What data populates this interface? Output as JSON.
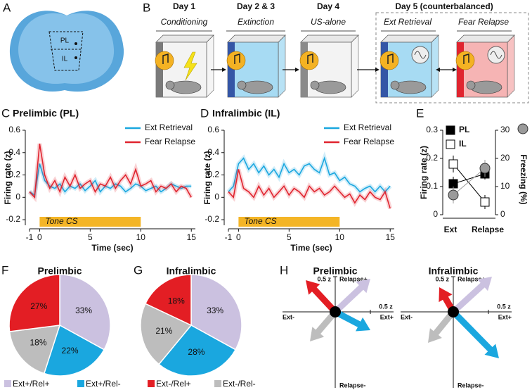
{
  "panel_labels": [
    "A",
    "B",
    "C",
    "D",
    "E",
    "F",
    "G",
    "H"
  ],
  "brain": {
    "regions": [
      "PL",
      "IL"
    ]
  },
  "protocol": {
    "days": [
      {
        "day": "Day 1",
        "phase": "Conditioning"
      },
      {
        "day": "Day 2 & 3",
        "phase": "Extinction"
      },
      {
        "day": "Day 4",
        "phase": "US-alone"
      }
    ],
    "day5": {
      "day": "Day 5 (counterbalanced)",
      "phases": [
        "Ext Retrieval",
        "Fear Relapse"
      ]
    }
  },
  "legend": {
    "labels": [
      "Ext+/Rel+",
      "Ext+/Rel-",
      "Ext-/Rel+",
      "Ext-/Rel-"
    ],
    "colors": [
      "#cbc1e0",
      "#1aa7df",
      "#e31e24",
      "#bdbdbd"
    ]
  },
  "chart_data": [
    {
      "type": "line",
      "title": "Prelimbic (PL)",
      "xlabel": "Time (sec)",
      "ylabel": "Firing rate (z)",
      "x": [
        -1,
        -0.5,
        0,
        0.5,
        1,
        1.5,
        2,
        2.5,
        3,
        3.5,
        4,
        4.5,
        5,
        5.5,
        6,
        6.5,
        7,
        7.5,
        8,
        8.5,
        9,
        9.5,
        10,
        10.5,
        11,
        11.5,
        12,
        12.5,
        13,
        13.5,
        14,
        14.5,
        15
      ],
      "series": [
        {
          "name": "Ext Retrieval",
          "color": "#1aa7df",
          "values": [
            0.05,
            0.02,
            0.3,
            0.15,
            0.1,
            0.08,
            0.12,
            0.05,
            0.1,
            0.08,
            0.12,
            0.06,
            0.1,
            0.15,
            0.05,
            0.1,
            0.08,
            0.12,
            0.1,
            0.05,
            0.08,
            0.12,
            0.1,
            0.06,
            0.08,
            0.1,
            0.05,
            0.08,
            0.12,
            0.1,
            0.08,
            0.1,
            0.1
          ]
        },
        {
          "name": "Fear Relapse",
          "color": "#e0242f",
          "values": [
            0.05,
            0.0,
            0.48,
            0.2,
            0.08,
            0.15,
            0.05,
            0.18,
            0.1,
            0.2,
            0.08,
            0.12,
            0.15,
            0.05,
            0.12,
            0.1,
            0.18,
            0.08,
            0.15,
            0.2,
            0.12,
            0.25,
            0.1,
            0.12,
            0.15,
            0.05,
            0.1,
            0.08,
            0.12,
            0.05,
            0.1,
            0.08,
            0.0
          ]
        }
      ],
      "annotations": [
        {
          "text": "Tone CS",
          "x": [
            0,
            10
          ]
        }
      ],
      "xlim": [
        -1,
        15.4
      ],
      "xticks": [
        -1,
        0,
        5,
        10,
        15
      ],
      "ylim": [
        -0.25,
        0.6
      ],
      "yticks": [
        -0.2,
        0,
        0.2,
        0.4,
        0.6
      ]
    },
    {
      "type": "line",
      "title": "Infralimbic (IL)",
      "xlabel": "Time (sec)",
      "ylabel": "Firing rate (z)",
      "x": [
        -1,
        -0.5,
        0,
        0.5,
        1,
        1.5,
        2,
        2.5,
        3,
        3.5,
        4,
        4.5,
        5,
        5.5,
        6,
        6.5,
        7,
        7.5,
        8,
        8.5,
        9,
        9.5,
        10,
        10.5,
        11,
        11.5,
        12,
        12.5,
        13,
        13.5,
        14,
        14.5,
        15
      ],
      "series": [
        {
          "name": "Ext Retrieval",
          "color": "#1aa7df",
          "values": [
            0.05,
            0.1,
            0.3,
            0.35,
            0.25,
            0.3,
            0.22,
            0.28,
            0.2,
            0.25,
            0.18,
            0.3,
            0.22,
            0.25,
            0.2,
            0.28,
            0.3,
            0.25,
            0.22,
            0.35,
            0.2,
            0.22,
            0.15,
            0.18,
            0.12,
            0.1,
            0.05,
            0.08,
            0.1,
            0.05,
            0.1,
            0.05,
            0.1
          ]
        },
        {
          "name": "Fear Relapse",
          "color": "#e0242f",
          "values": [
            0.05,
            0.0,
            0.25,
            0.08,
            0.05,
            0.0,
            0.1,
            0.02,
            0.08,
            0.0,
            0.05,
            0.1,
            0.02,
            0.08,
            0.05,
            0.0,
            0.1,
            0.05,
            0.08,
            0.02,
            0.05,
            0.1,
            0.05,
            0.0,
            0.03,
            -0.05,
            0.02,
            -0.02,
            0.05,
            0.0,
            -0.02,
            0.05,
            -0.1
          ]
        }
      ],
      "annotations": [
        {
          "text": "Tone CS",
          "x": [
            0,
            10
          ]
        }
      ],
      "xlim": [
        -1,
        15.4
      ],
      "xticks": [
        -1,
        0,
        5,
        10,
        15
      ],
      "ylim": [
        -0.25,
        0.6
      ],
      "yticks": [
        -0.2,
        0,
        0.2,
        0.4,
        0.6
      ]
    },
    {
      "type": "point",
      "categories": [
        "Ext",
        "Relapse"
      ],
      "ylabel": "Firing rate (z)",
      "y2label": "Freezing (%)",
      "series": [
        {
          "name": "PL",
          "color": "#000000",
          "marker": "square-filled",
          "values": [
            0.11,
            0.145
          ],
          "errors": [
            0.025,
            0.02
          ]
        },
        {
          "name": "IL",
          "color": "#000000",
          "marker": "square-open",
          "values": [
            0.18,
            0.045
          ],
          "errors": [
            0.03,
            0.025
          ]
        },
        {
          "color": "#9a9a9a",
          "marker": "circle",
          "axis": "y2",
          "values": [
            7,
            16.5
          ],
          "errors": [
            3,
            3
          ]
        }
      ],
      "ylim": [
        0,
        0.3
      ],
      "yticks": [
        0,
        0.1,
        0.2,
        0.3
      ],
      "y2lim": [
        0,
        30
      ],
      "y2ticks": [
        0,
        10,
        20,
        30
      ]
    },
    {
      "type": "pie",
      "title": "Prelimbic",
      "values": [
        33,
        22,
        18,
        27
      ],
      "value_labels": [
        "33%",
        "22%",
        "18%",
        "27%"
      ],
      "colors": [
        "#cbc1e0",
        "#1aa7df",
        "#bdbdbd",
        "#e31e24"
      ]
    },
    {
      "type": "pie",
      "title": "Infralimbic",
      "values": [
        33,
        28,
        21,
        18
      ],
      "value_labels": [
        "33%",
        "28%",
        "21%",
        "18%"
      ],
      "colors": [
        "#cbc1e0",
        "#1aa7df",
        "#bdbdbd",
        "#e31e24"
      ]
    },
    {
      "type": "vector",
      "title": "Prelimbic",
      "x_pos_label": "Ext+",
      "x_neg_label": "Ext-",
      "y_pos_label": "Relapse+",
      "y_neg_label": "Relapse-",
      "xticks": [
        {
          "value": 0.5,
          "label": "0.5 z"
        }
      ],
      "yticks": [
        {
          "value": 0.5,
          "label": "0.5 z"
        }
      ],
      "x": [
        -0.36,
        0.5,
        0.5,
        -0.42
      ],
      "values": [
        -0.42,
        0.47,
        -0.26,
        0.45
      ],
      "colors": [
        "#bdbdbd",
        "#cbc1e0",
        "#1aa7df",
        "#e31e24"
      ]
    },
    {
      "type": "vector",
      "title": "Infralimbic",
      "x_pos_label": "Ext+",
      "x_neg_label": "Ext-",
      "y_pos_label": "Relapse+",
      "y_neg_label": "Relapse-",
      "xticks": [
        {
          "value": 0.5,
          "label": "0.5 z"
        }
      ],
      "yticks": [
        {
          "value": 0.5,
          "label": "0.5 z"
        }
      ],
      "x": [
        -0.36,
        0.55,
        0.65,
        -0.2
      ],
      "values": [
        -0.44,
        0.5,
        -0.66,
        0.35
      ],
      "colors": [
        "#bdbdbd",
        "#cbc1e0",
        "#1aa7df",
        "#e31e24"
      ]
    }
  ]
}
